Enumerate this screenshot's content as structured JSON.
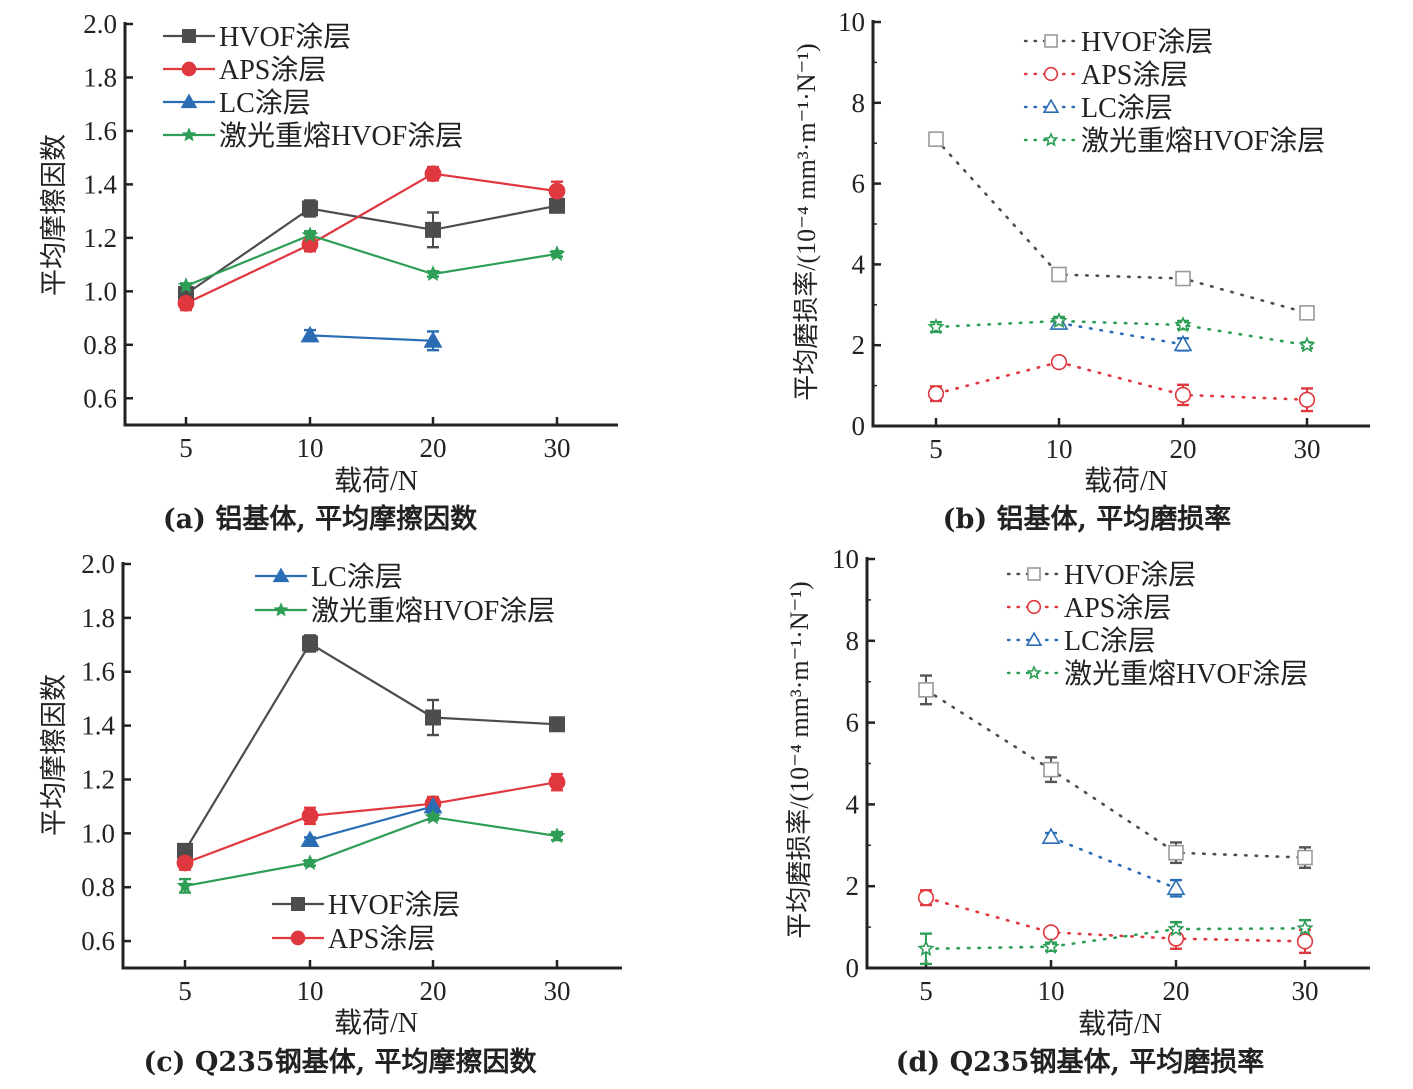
{
  "colors": {
    "HVOF": "#4d4d4d",
    "APS": "#e0383f",
    "LC": "#2a6db5",
    "LR": "#2e9e57",
    "axis": "#222222"
  },
  "chart_data": [
    {
      "id": "a",
      "type": "line",
      "line_style": "solid",
      "marker_fill": "filled",
      "title": "(a) 铝基体, 平均摩擦因数",
      "xlabel": "载荷/N",
      "ylabel": "平均摩擦因数",
      "categories": [
        "5",
        "10",
        "20",
        "30"
      ],
      "ylim": [
        0.5,
        2.0
      ],
      "yticks": [
        "0.6",
        "0.8",
        "1.0",
        "1.2",
        "1.4",
        "1.6",
        "1.8",
        "2.0"
      ],
      "legend_position": "top-left",
      "legend_groups": [
        [
          "HVOF",
          "APS",
          "LC",
          "LR"
        ]
      ],
      "series": [
        {
          "key": "HVOF",
          "name": "HVOF涂层",
          "marker": "square",
          "values": [
            0.99,
            1.31,
            1.23,
            1.32
          ],
          "errors": [
            0.02,
            0.03,
            0.065,
            0.015
          ]
        },
        {
          "key": "APS",
          "name": "APS涂层",
          "marker": "circle",
          "values": [
            0.955,
            1.175,
            1.44,
            1.375
          ],
          "errors": [
            0.025,
            0.025,
            0.025,
            0.035
          ]
        },
        {
          "key": "LC",
          "name": "LC涂层",
          "marker": "triangle",
          "values": [
            null,
            0.835,
            0.815,
            null
          ],
          "errors": [
            null,
            0.02,
            0.035,
            null
          ]
        },
        {
          "key": "LR",
          "name": "激光重熔HVOF涂层",
          "marker": "star",
          "values": [
            1.02,
            1.21,
            1.065,
            1.14
          ],
          "errors": [
            0.01,
            0.015,
            0.01,
            0.01
          ]
        }
      ]
    },
    {
      "id": "b",
      "type": "line",
      "line_style": "dotted",
      "marker_fill": "hollow",
      "title": "(b) 铝基体, 平均磨损率",
      "xlabel": "载荷/N",
      "ylabel": "平均磨损率/(10⁻⁴ mm³·m⁻¹·N⁻¹)",
      "categories": [
        "5",
        "10",
        "20",
        "30"
      ],
      "ylim": [
        0,
        10
      ],
      "yticks": [
        "0",
        "2",
        "4",
        "6",
        "8",
        "10"
      ],
      "legend_position": "top-right",
      "legend_groups": [
        [
          "HVOF",
          "APS",
          "LC",
          "LR"
        ]
      ],
      "series": [
        {
          "key": "HVOF",
          "name": "HVOF涂层",
          "marker": "square",
          "values": [
            7.1,
            3.75,
            3.65,
            2.8
          ],
          "errors": [
            0.12,
            0.12,
            0.15,
            0.15
          ]
        },
        {
          "key": "APS",
          "name": "APS涂层",
          "marker": "circle",
          "values": [
            0.8,
            1.58,
            0.77,
            0.65
          ],
          "errors": [
            0.18,
            0.12,
            0.25,
            0.28
          ]
        },
        {
          "key": "LC",
          "name": "LC涂层",
          "marker": "triangle",
          "values": [
            null,
            2.55,
            2.02,
            null
          ],
          "errors": [
            null,
            0.1,
            0.15,
            null
          ]
        },
        {
          "key": "LR",
          "name": "激光重熔HVOF涂层",
          "marker": "star",
          "values": [
            2.45,
            2.6,
            2.5,
            2.0
          ],
          "errors": [
            0.12,
            0.1,
            0.1,
            0.07
          ]
        }
      ]
    },
    {
      "id": "c",
      "type": "line",
      "line_style": "solid",
      "marker_fill": "filled",
      "title": "(c) Q235钢基体, 平均摩擦因数",
      "xlabel": "载荷/N",
      "ylabel": "平均摩擦因数",
      "categories": [
        "5",
        "10",
        "20",
        "30"
      ],
      "ylim": [
        0.5,
        2.0
      ],
      "yticks": [
        "0.6",
        "0.8",
        "1.0",
        "1.2",
        "1.4",
        "1.6",
        "1.8",
        "2.0"
      ],
      "legend_position": "split: top-center and bottom-center",
      "legend_groups": [
        [
          "LC",
          "LR"
        ],
        [
          "HVOF",
          "APS"
        ]
      ],
      "series": [
        {
          "key": "HVOF",
          "name": "HVOF涂层",
          "marker": "square",
          "values": [
            0.935,
            1.705,
            1.43,
            1.405
          ],
          "errors": [
            0.01,
            0.03,
            0.065,
            0.01
          ]
        },
        {
          "key": "APS",
          "name": "APS涂层",
          "marker": "circle",
          "values": [
            0.89,
            1.065,
            1.11,
            1.19
          ],
          "errors": [
            0.025,
            0.03,
            0.025,
            0.03
          ]
        },
        {
          "key": "LC",
          "name": "LC涂层",
          "marker": "triangle",
          "values": [
            null,
            0.975,
            1.1,
            null
          ],
          "errors": [
            null,
            0.01,
            0.02,
            null
          ]
        },
        {
          "key": "LR",
          "name": "激光重熔HVOF涂层",
          "marker": "star",
          "values": [
            0.805,
            0.89,
            1.06,
            0.99
          ],
          "errors": [
            0.025,
            0.01,
            0.01,
            0.015
          ]
        }
      ]
    },
    {
      "id": "d",
      "type": "line",
      "line_style": "dotted",
      "marker_fill": "hollow",
      "title": "(d) Q235钢基体, 平均磨损率",
      "xlabel": "载荷/N",
      "ylabel": "平均磨损率/(10⁻⁴ mm³·m⁻¹·N⁻¹)",
      "categories": [
        "5",
        "10",
        "20",
        "30"
      ],
      "ylim": [
        0,
        10
      ],
      "yticks": [
        "0",
        "2",
        "4",
        "6",
        "8",
        "10"
      ],
      "legend_position": "top-right",
      "legend_groups": [
        [
          "HVOF",
          "APS",
          "LC",
          "LR"
        ]
      ],
      "series": [
        {
          "key": "HVOF",
          "name": "HVOF涂层",
          "marker": "square",
          "values": [
            6.8,
            4.85,
            2.82,
            2.7
          ],
          "errors": [
            0.35,
            0.3,
            0.25,
            0.25
          ]
        },
        {
          "key": "APS",
          "name": "APS涂层",
          "marker": "circle",
          "values": [
            1.72,
            0.87,
            0.72,
            0.65
          ],
          "errors": [
            0.18,
            0.1,
            0.25,
            0.28
          ]
        },
        {
          "key": "LC",
          "name": "LC涂层",
          "marker": "triangle",
          "values": [
            null,
            3.2,
            1.95,
            null
          ],
          "errors": [
            null,
            0.1,
            0.2,
            null
          ]
        },
        {
          "key": "LR",
          "name": "激光重熔HVOF涂层",
          "marker": "star",
          "values": [
            0.47,
            0.52,
            0.95,
            0.97
          ],
          "errors": [
            0.37,
            0.1,
            0.17,
            0.2
          ]
        }
      ]
    }
  ]
}
